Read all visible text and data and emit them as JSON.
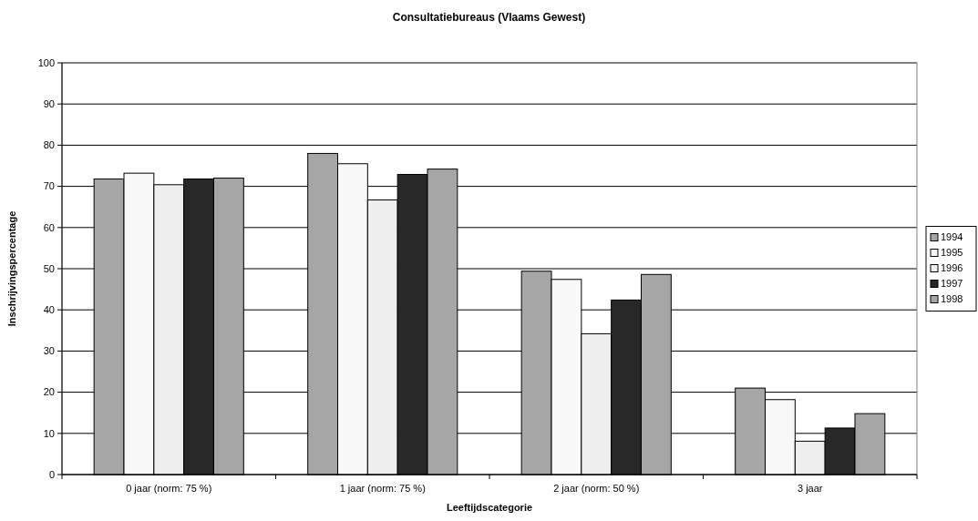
{
  "chart_data": {
    "type": "bar",
    "title": "Consultatiebureaus (Vlaams Gewest)",
    "xlabel": "Leeftijdscategorie",
    "ylabel": "Inschrijvingspercentage",
    "categories": [
      "0 jaar (norm: 75 %)",
      "1 jaar (norm: 75 %)",
      "2 jaar (norm: 50 %)",
      "3 jaar"
    ],
    "series": [
      {
        "name": "1994",
        "color": "#a6a6a6",
        "values": [
          71.8,
          78,
          49.4,
          21
        ]
      },
      {
        "name": "1995",
        "color": "#f8f8f8",
        "values": [
          73.2,
          75.5,
          47.4,
          18.2
        ]
      },
      {
        "name": "1996",
        "color": "#eeeeee",
        "values": [
          70.4,
          66.7,
          34.2,
          8.1
        ]
      },
      {
        "name": "1997",
        "color": "#282828",
        "values": [
          71.8,
          72.9,
          42.4,
          11.3
        ]
      },
      {
        "name": "1998",
        "color": "#a6a6a6",
        "values": [
          72,
          74.2,
          48.6,
          14.8
        ]
      }
    ],
    "ylim": [
      0,
      100
    ],
    "yticks": [
      0,
      10,
      20,
      30,
      40,
      50,
      60,
      70,
      80,
      90,
      100
    ],
    "grid": "y",
    "legend": "right"
  }
}
